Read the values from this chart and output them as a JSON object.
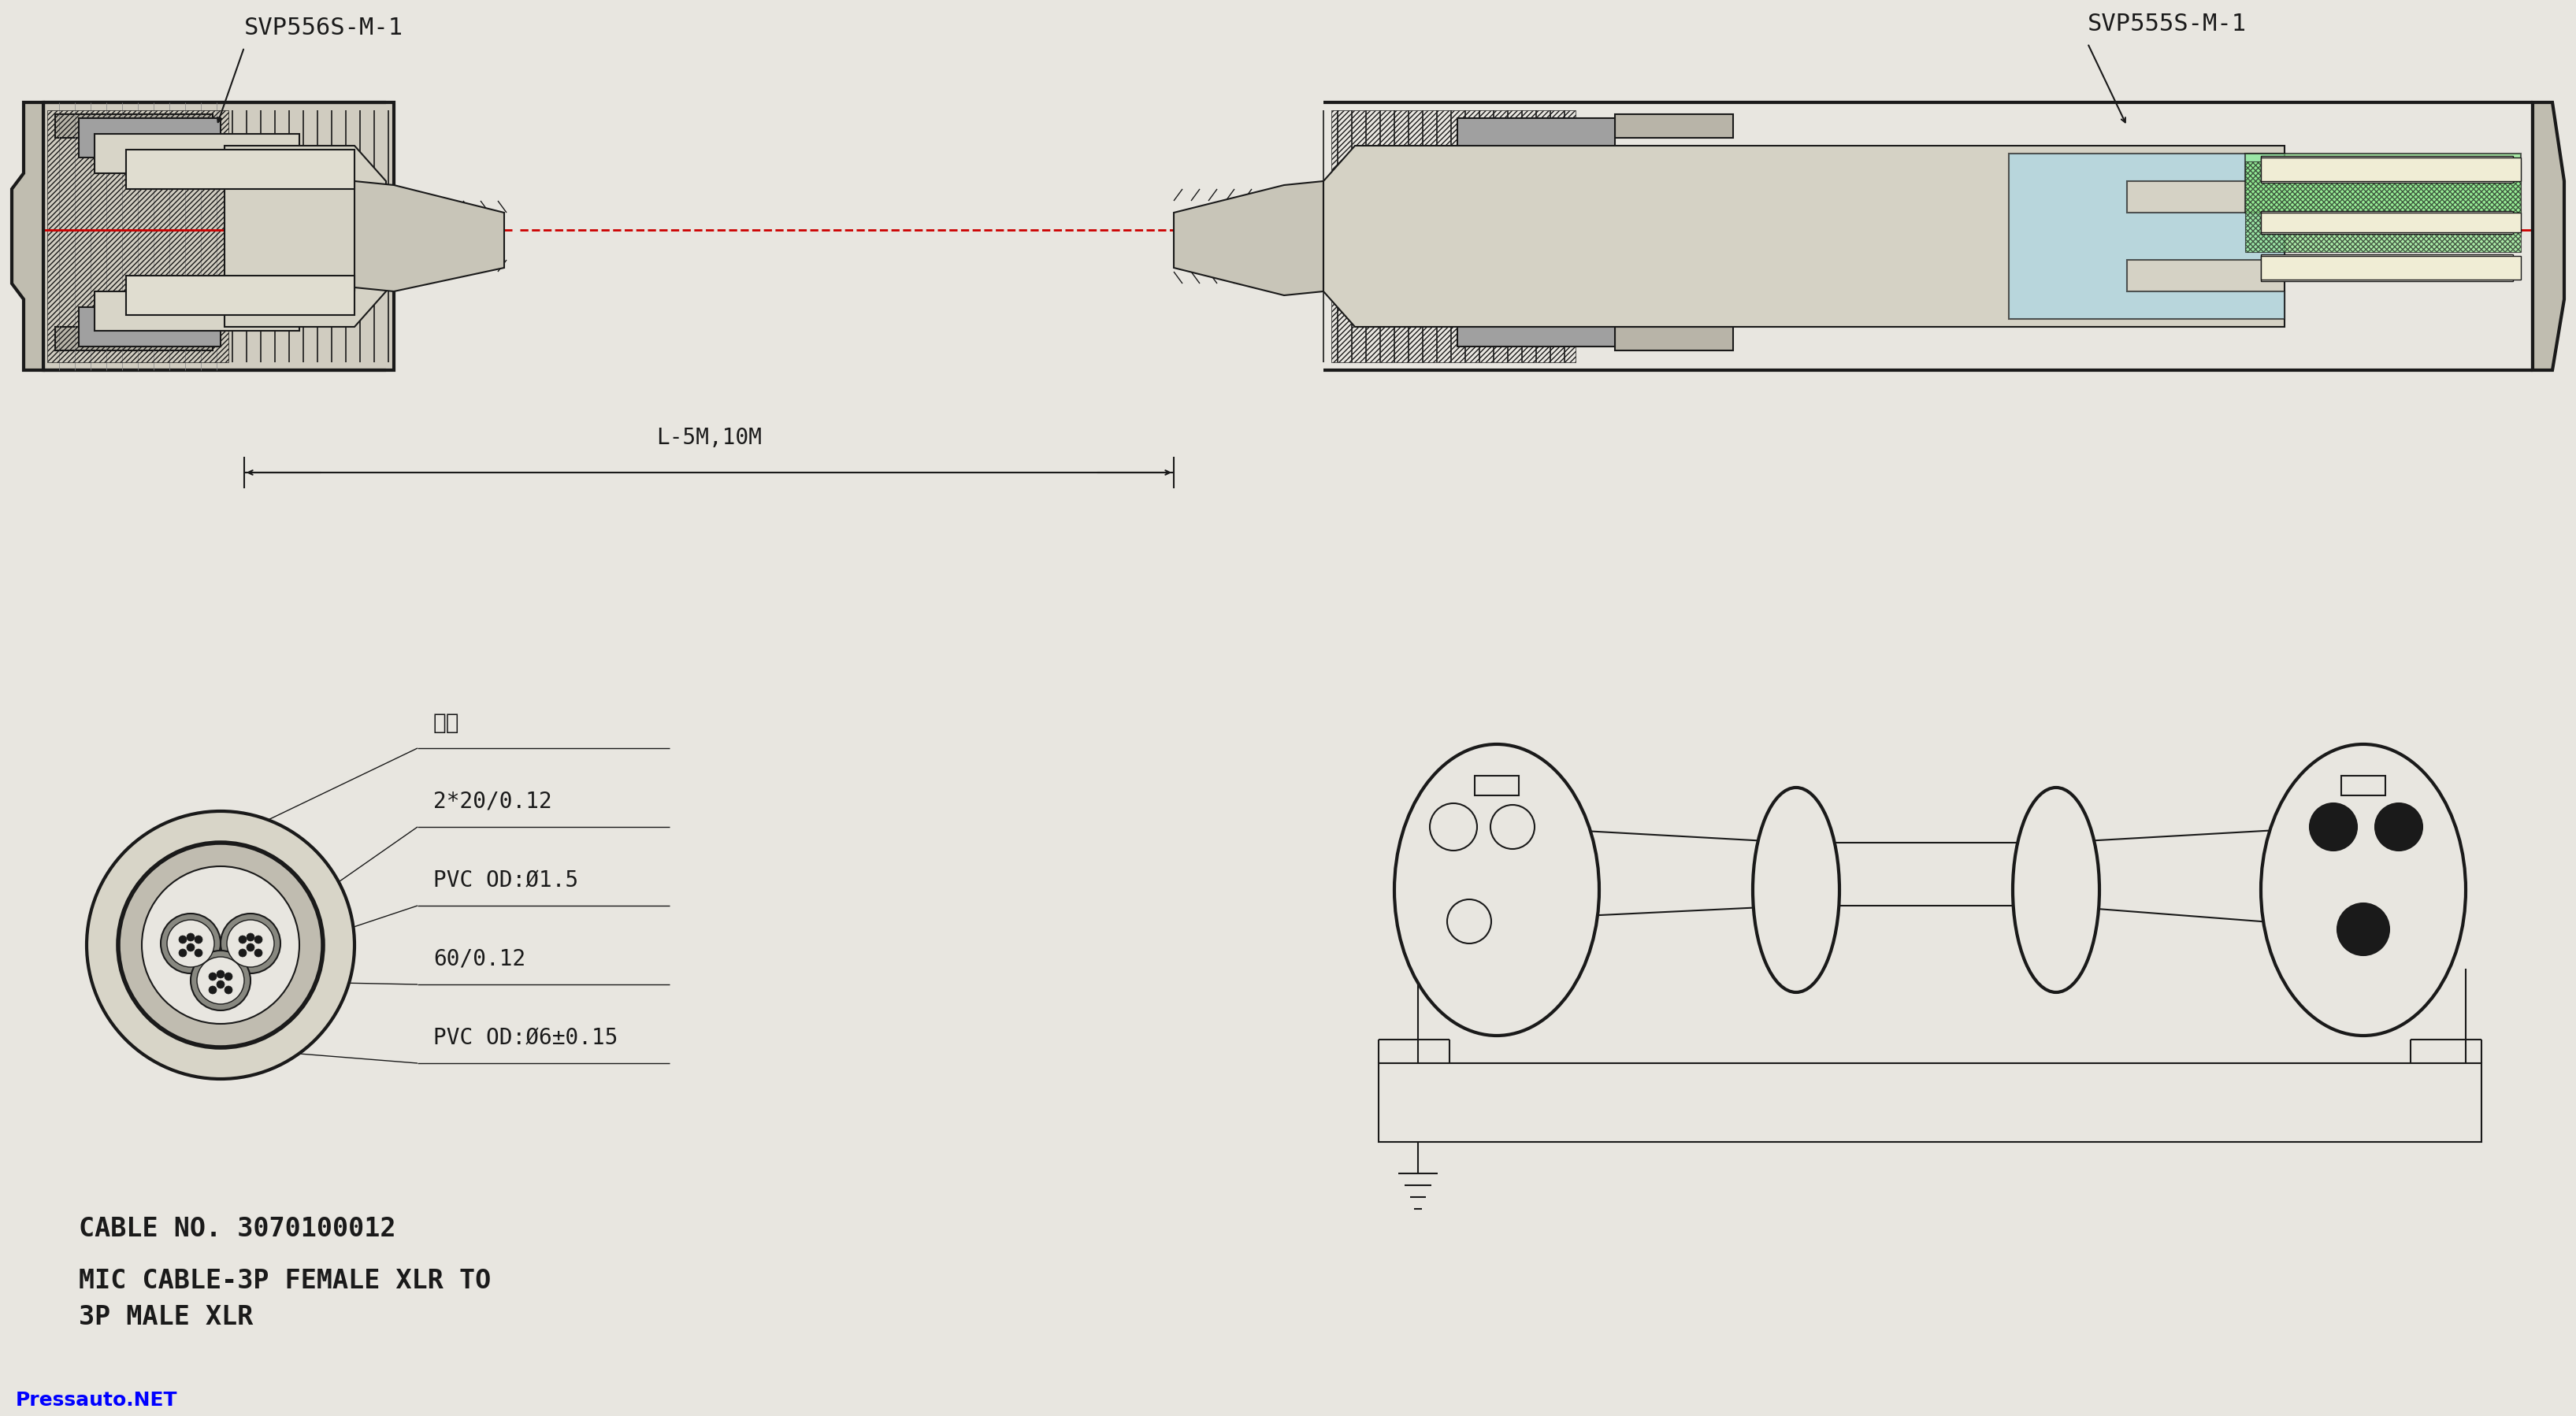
{
  "bg_color": "#e8e6e0",
  "line_color": "#1a1a1a",
  "title_label_left": "SVP556S-M-1",
  "title_label_right": "SVP555S-M-1",
  "dim_label": "L-5M,10M",
  "cable_no": "CABLE NO. 3070100012",
  "cable_type": "MIC CABLE-3P FEMALE XLR TO\n3P MALE XLR",
  "cable_labels": [
    "棉线",
    "2*20/0.12",
    "PVC OD:Ø1.5",
    "60/0.12",
    "PVC OD:Ø6±0.15"
  ],
  "watermark": "Pressauto.NET",
  "red_line_color": "#cc0000",
  "blue_fill": "#add8e6",
  "green_fill": "#90ee90"
}
